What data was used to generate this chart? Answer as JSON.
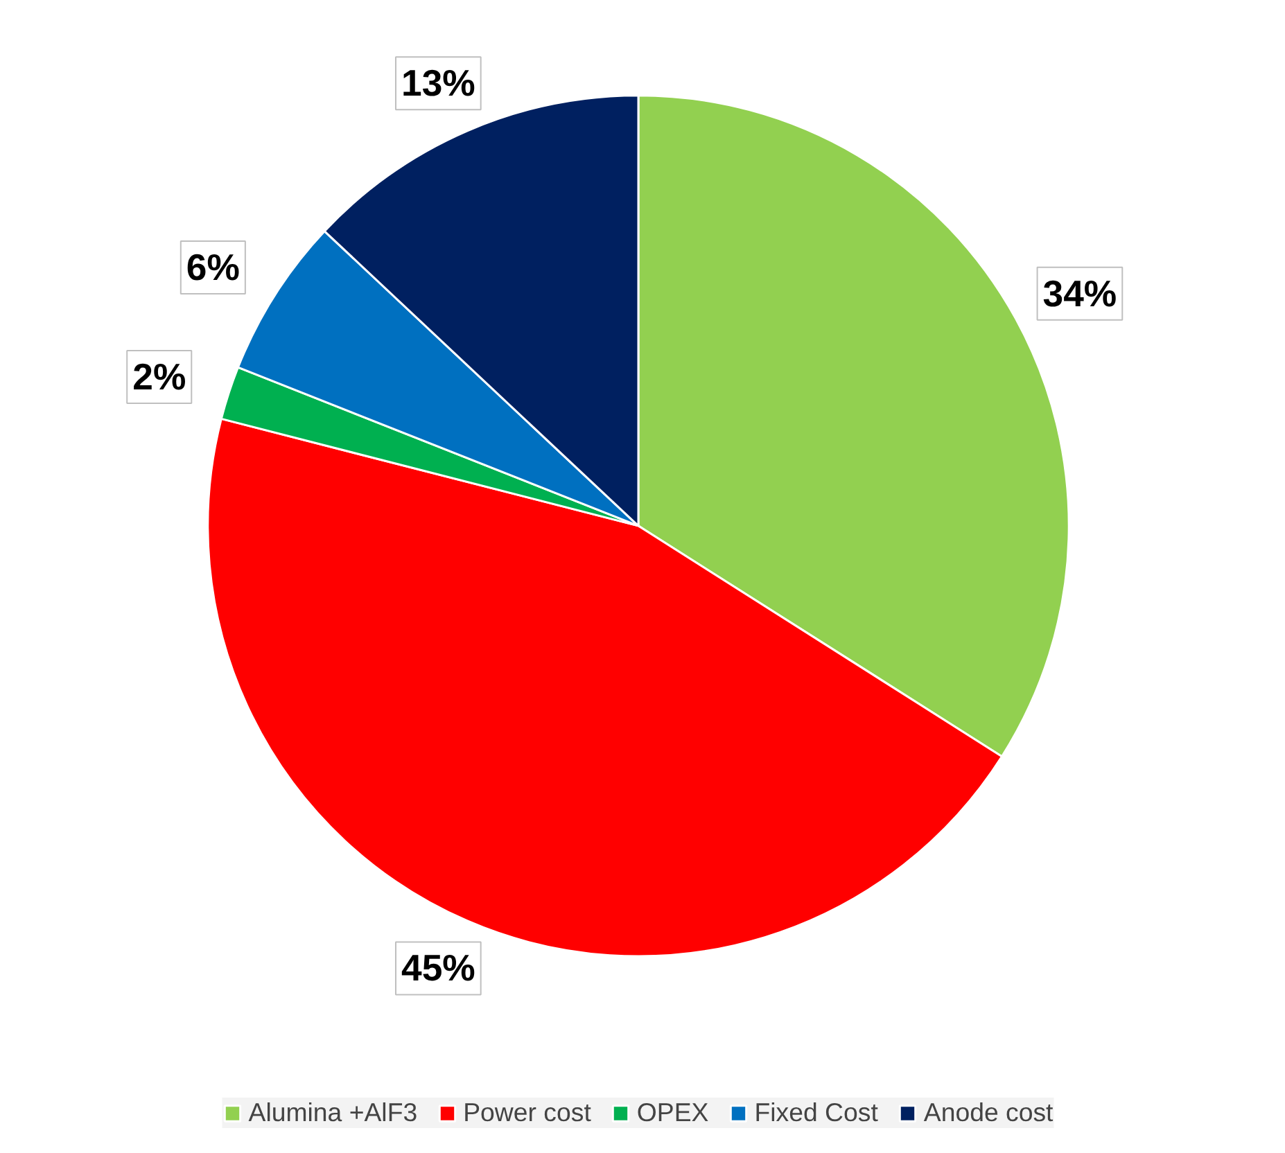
{
  "chart_data": {
    "type": "pie",
    "categories": [
      "Alumina +AlF3",
      "Power cost",
      "OPEX",
      "Fixed Cost",
      "Anode cost"
    ],
    "values": [
      34,
      45,
      2,
      6,
      13
    ],
    "colors": [
      "#92d050",
      "#ff0000",
      "#00b050",
      "#0070c0",
      "#002060"
    ],
    "value_labels": [
      "34%",
      "45%",
      "2%",
      "6%",
      "13%"
    ],
    "legend": "bottom"
  }
}
